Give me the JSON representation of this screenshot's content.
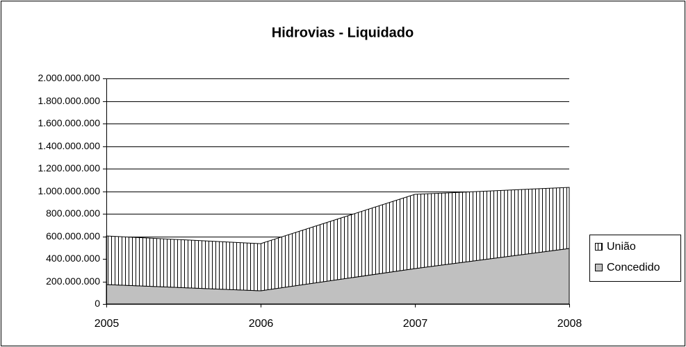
{
  "chart_data": {
    "type": "stacked-area",
    "title": "Hidrovias - Liquidado",
    "categories": [
      "2005",
      "2006",
      "2007",
      "2008"
    ],
    "series": [
      {
        "name": "Concedido",
        "color": "#c0c0c0",
        "values": [
          172000000,
          117000000,
          314000000,
          492000000
        ]
      },
      {
        "name": "União",
        "color": "#ffffff",
        "pattern": "vertical-lines",
        "values": [
          431000000,
          418000000,
          658000000,
          542000000
        ]
      }
    ],
    "ylim": [
      0,
      2000000000
    ],
    "yticks": [
      0,
      {
        "value": 200000000,
        "label": "200.000.000"
      },
      {
        "value": 400000000,
        "label": "400.000.000"
      },
      {
        "value": 600000000,
        "label": "600.000.000"
      },
      {
        "value": 800000000,
        "label": "800.000.000"
      },
      {
        "value": 1000000000,
        "label": "1.000.000.000"
      },
      {
        "value": 1200000000,
        "label": "1.200.000.000"
      },
      {
        "value": 1400000000,
        "label": "1.400.000.000"
      },
      {
        "value": 1600000000,
        "label": "1.600.000.000"
      },
      {
        "value": 1800000000,
        "label": "1.800.000.000"
      },
      {
        "value": 2000000000,
        "label": "2.000.000.000"
      }
    ],
    "grid": true,
    "legend": "right"
  }
}
